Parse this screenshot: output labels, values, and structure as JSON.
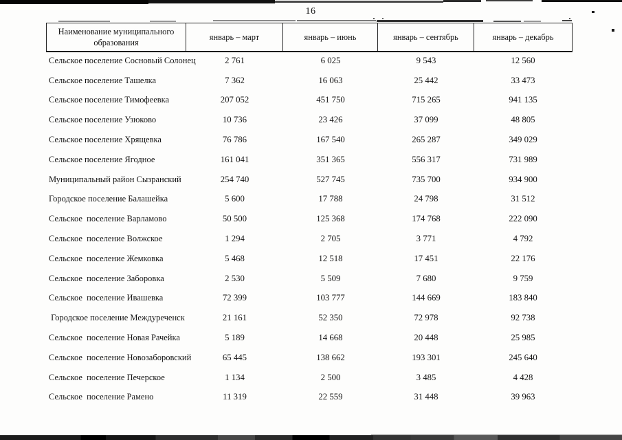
{
  "page_number": "16",
  "table": {
    "header": {
      "name_column": "Наименование муниципального образования",
      "periods": [
        "январь – март",
        "январь – июнь",
        "январь – сентябрь",
        "январь – декабрь"
      ]
    },
    "rows": [
      {
        "name": "Сельское поселение Сосновый Солонец",
        "values": [
          "2 761",
          "6 025",
          "9 543",
          "12 560"
        ]
      },
      {
        "name": "Сельское поселение Ташелка",
        "values": [
          "7 362",
          "16 063",
          "25 442",
          "33 473"
        ]
      },
      {
        "name": "Сельское поселение Тимофеевка",
        "values": [
          "207 052",
          "451 750",
          "715 265",
          "941 135"
        ]
      },
      {
        "name": "Сельское поселение Узюково",
        "values": [
          "10 736",
          "23 426",
          "37 099",
          "48 805"
        ]
      },
      {
        "name": "Сельское поселение Хрящевка",
        "values": [
          "76 786",
          "167 540",
          "265 287",
          "349 029"
        ]
      },
      {
        "name": "Сельское поселение Ягодное",
        "values": [
          "161 041",
          "351 365",
          "556 317",
          "731 989"
        ]
      },
      {
        "name": "Муниципальный район Сызранский",
        "values": [
          "254 740",
          "527 745",
          "735 700",
          "934 900"
        ]
      },
      {
        "name": "Городское поселение Балашейка",
        "values": [
          "5 600",
          "17 788",
          "24 798",
          "31 512"
        ]
      },
      {
        "name": "Сельское  поселение Варламово",
        "values": [
          "50 500",
          "125 368",
          "174 768",
          "222 090"
        ]
      },
      {
        "name": "Сельское  поселение Волжское",
        "values": [
          "1 294",
          "2 705",
          "3 771",
          "4 792"
        ]
      },
      {
        "name": "Сельское  поселение Жемковка",
        "values": [
          "5 468",
          "12 518",
          "17 451",
          "22 176"
        ]
      },
      {
        "name": "Сельское  поселение Заборовка",
        "values": [
          "2 530",
          "5 509",
          "7 680",
          "9 759"
        ]
      },
      {
        "name": "Сельское  поселение Ивашевка",
        "values": [
          "72 399",
          "103 777",
          "144 669",
          "183 840"
        ]
      },
      {
        "name": " Городское поселение Междуреченск",
        "values": [
          "21 161",
          "52 350",
          "72 978",
          "92 738"
        ]
      },
      {
        "name": "Сельское  поселение Новая Рачейка",
        "values": [
          "5 189",
          "14 668",
          "20 448",
          "25 985"
        ]
      },
      {
        "name": "Сельское  поселение Новозаборовский",
        "values": [
          "65 445",
          "138 662",
          "193 301",
          "245 640"
        ]
      },
      {
        "name": "Сельское  поселение Печерское",
        "values": [
          "1 134",
          "2 500",
          "3 485",
          "4 428"
        ]
      },
      {
        "name": "Сельское  поселение Рамено",
        "values": [
          "11 319",
          "22 559",
          "31 448",
          "39 963"
        ]
      }
    ]
  }
}
